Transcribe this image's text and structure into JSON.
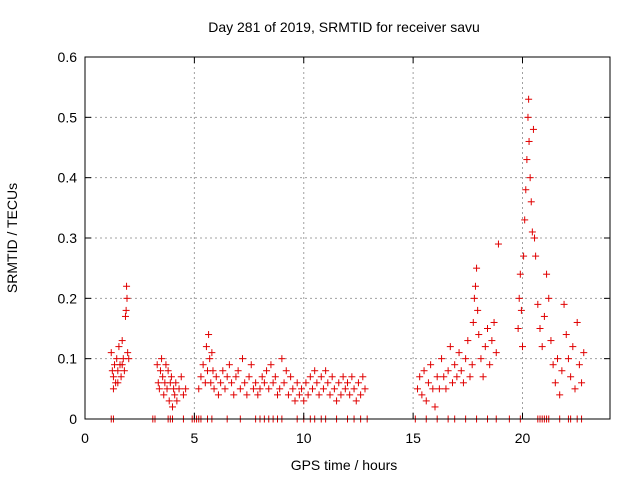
{
  "chart_data": {
    "type": "scatter",
    "title": "Day 281 of 2019, SRMTID for receiver savu",
    "xlabel": "GPS time / hours",
    "ylabel": "SRMTID / TECUs",
    "xlim": [
      0,
      24
    ],
    "ylim": [
      0,
      0.6
    ],
    "xticks": [
      0,
      5,
      10,
      15,
      20
    ],
    "yticks": [
      0,
      0.1,
      0.2,
      0.3,
      0.4,
      0.5,
      0.6
    ],
    "ytick_labels": [
      "0",
      "0.1",
      "0.2",
      "0.3",
      "0.4",
      "0.5",
      "0.6"
    ],
    "xtick_labels": [
      "0",
      "5",
      "10",
      "15",
      "20"
    ],
    "grid": true,
    "marker": "+",
    "color": "#e00000",
    "series": [
      {
        "name": "SRMTID",
        "points": [
          [
            1.2,
            0.11
          ],
          [
            1.25,
            0.08
          ],
          [
            1.3,
            0.07
          ],
          [
            1.35,
            0.09
          ],
          [
            1.4,
            0.06
          ],
          [
            1.45,
            0.1
          ],
          [
            1.5,
            0.08
          ],
          [
            1.55,
            0.12
          ],
          [
            1.6,
            0.09
          ],
          [
            1.65,
            0.07
          ],
          [
            1.7,
            0.13
          ],
          [
            1.75,
            0.1
          ],
          [
            1.8,
            0.08
          ],
          [
            1.85,
            0.17
          ],
          [
            1.88,
            0.18
          ],
          [
            1.9,
            0.22
          ],
          [
            1.92,
            0.2
          ],
          [
            1.95,
            0.11
          ],
          [
            2.0,
            0.1
          ],
          [
            1.3,
            0.05
          ],
          [
            1.5,
            0.06
          ],
          [
            1.7,
            0.09
          ],
          [
            3.3,
            0.09
          ],
          [
            3.35,
            0.06
          ],
          [
            3.4,
            0.05
          ],
          [
            3.45,
            0.08
          ],
          [
            3.5,
            0.1
          ],
          [
            3.55,
            0.07
          ],
          [
            3.6,
            0.04
          ],
          [
            3.65,
            0.06
          ],
          [
            3.7,
            0.09
          ],
          [
            3.75,
            0.05
          ],
          [
            3.8,
            0.08
          ],
          [
            3.85,
            0.03
          ],
          [
            3.9,
            0.06
          ],
          [
            3.95,
            0.07
          ],
          [
            4.0,
            0.02
          ],
          [
            4.05,
            0.05
          ],
          [
            4.1,
            0.04
          ],
          [
            4.15,
            0.06
          ],
          [
            4.2,
            0.03
          ],
          [
            4.3,
            0.05
          ],
          [
            4.4,
            0.07
          ],
          [
            4.5,
            0.04
          ],
          [
            4.6,
            0.05
          ],
          [
            5.2,
            0.05
          ],
          [
            5.3,
            0.07
          ],
          [
            5.4,
            0.09
          ],
          [
            5.5,
            0.06
          ],
          [
            5.55,
            0.12
          ],
          [
            5.6,
            0.08
          ],
          [
            5.65,
            0.14
          ],
          [
            5.7,
            0.1
          ],
          [
            5.75,
            0.06
          ],
          [
            5.8,
            0.11
          ],
          [
            5.85,
            0.08
          ],
          [
            5.9,
            0.05
          ],
          [
            6.0,
            0.07
          ],
          [
            6.1,
            0.04
          ],
          [
            6.2,
            0.06
          ],
          [
            6.3,
            0.08
          ],
          [
            6.4,
            0.05
          ],
          [
            6.5,
            0.07
          ],
          [
            6.6,
            0.09
          ],
          [
            6.7,
            0.06
          ],
          [
            6.8,
            0.04
          ],
          [
            6.9,
            0.07
          ],
          [
            7.0,
            0.08
          ],
          [
            7.1,
            0.05
          ],
          [
            7.2,
            0.1
          ],
          [
            7.3,
            0.06
          ],
          [
            7.4,
            0.04
          ],
          [
            7.5,
            0.07
          ],
          [
            7.6,
            0.09
          ],
          [
            7.7,
            0.05
          ],
          [
            7.8,
            0.06
          ],
          [
            7.9,
            0.04
          ],
          [
            8.0,
            0.05
          ],
          [
            8.1,
            0.07
          ],
          [
            8.2,
            0.06
          ],
          [
            8.3,
            0.08
          ],
          [
            8.4,
            0.05
          ],
          [
            8.5,
            0.09
          ],
          [
            8.6,
            0.06
          ],
          [
            8.7,
            0.07
          ],
          [
            8.8,
            0.04
          ],
          [
            8.9,
            0.05
          ],
          [
            9.0,
            0.1
          ],
          [
            9.1,
            0.06
          ],
          [
            9.2,
            0.08
          ],
          [
            9.3,
            0.04
          ],
          [
            9.4,
            0.07
          ],
          [
            9.5,
            0.05
          ],
          [
            9.6,
            0.03
          ],
          [
            9.7,
            0.06
          ],
          [
            9.8,
            0.04
          ],
          [
            9.9,
            0.05
          ],
          [
            10.0,
            0.03
          ],
          [
            10.1,
            0.06
          ],
          [
            10.2,
            0.04
          ],
          [
            10.3,
            0.07
          ],
          [
            10.4,
            0.05
          ],
          [
            10.5,
            0.08
          ],
          [
            10.6,
            0.06
          ],
          [
            10.7,
            0.04
          ],
          [
            10.8,
            0.07
          ],
          [
            10.9,
            0.05
          ],
          [
            11.0,
            0.08
          ],
          [
            11.1,
            0.06
          ],
          [
            11.2,
            0.04
          ],
          [
            11.3,
            0.07
          ],
          [
            11.4,
            0.05
          ],
          [
            11.5,
            0.03
          ],
          [
            11.6,
            0.06
          ],
          [
            11.7,
            0.04
          ],
          [
            11.8,
            0.07
          ],
          [
            11.9,
            0.05
          ],
          [
            12.0,
            0.06
          ],
          [
            12.1,
            0.04
          ],
          [
            12.2,
            0.07
          ],
          [
            12.3,
            0.05
          ],
          [
            12.4,
            0.03
          ],
          [
            12.5,
            0.06
          ],
          [
            12.6,
            0.04
          ],
          [
            12.7,
            0.07
          ],
          [
            12.8,
            0.05
          ],
          [
            15.2,
            0.05
          ],
          [
            15.3,
            0.07
          ],
          [
            15.4,
            0.04
          ],
          [
            15.5,
            0.08
          ],
          [
            15.6,
            0.03
          ],
          [
            15.7,
            0.06
          ],
          [
            15.8,
            0.09
          ],
          [
            15.9,
            0.05
          ],
          [
            16.0,
            0.02
          ],
          [
            16.1,
            0.07
          ],
          [
            16.2,
            0.05
          ],
          [
            16.3,
            0.1
          ],
          [
            16.4,
            0.07
          ],
          [
            16.5,
            0.05
          ],
          [
            16.6,
            0.08
          ],
          [
            16.7,
            0.12
          ],
          [
            16.8,
            0.06
          ],
          [
            16.9,
            0.09
          ],
          [
            17.0,
            0.07
          ],
          [
            17.1,
            0.11
          ],
          [
            17.2,
            0.08
          ],
          [
            17.3,
            0.06
          ],
          [
            17.4,
            0.1
          ],
          [
            17.5,
            0.13
          ],
          [
            17.6,
            0.07
          ],
          [
            17.7,
            0.09
          ],
          [
            17.75,
            0.16
          ],
          [
            17.8,
            0.2
          ],
          [
            17.85,
            0.22
          ],
          [
            17.9,
            0.25
          ],
          [
            17.95,
            0.18
          ],
          [
            18.0,
            0.14
          ],
          [
            18.1,
            0.1
          ],
          [
            18.2,
            0.07
          ],
          [
            18.3,
            0.12
          ],
          [
            18.4,
            0.15
          ],
          [
            18.5,
            0.09
          ],
          [
            18.6,
            0.13
          ],
          [
            18.7,
            0.16
          ],
          [
            18.8,
            0.11
          ],
          [
            18.9,
            0.29
          ],
          [
            19.8,
            0.15
          ],
          [
            19.85,
            0.2
          ],
          [
            19.9,
            0.24
          ],
          [
            19.95,
            0.18
          ],
          [
            20.0,
            0.12
          ],
          [
            20.05,
            0.27
          ],
          [
            20.1,
            0.33
          ],
          [
            20.15,
            0.38
          ],
          [
            20.2,
            0.43
          ],
          [
            20.25,
            0.5
          ],
          [
            20.28,
            0.53
          ],
          [
            20.3,
            0.46
          ],
          [
            20.35,
            0.4
          ],
          [
            20.4,
            0.36
          ],
          [
            20.45,
            0.31
          ],
          [
            20.5,
            0.48
          ],
          [
            20.55,
            0.3
          ],
          [
            20.6,
            0.27
          ],
          [
            20.7,
            0.19
          ],
          [
            20.8,
            0.15
          ],
          [
            20.9,
            0.12
          ],
          [
            21.0,
            0.17
          ],
          [
            21.1,
            0.24
          ],
          [
            21.2,
            0.2
          ],
          [
            21.3,
            0.13
          ],
          [
            21.4,
            0.09
          ],
          [
            21.5,
            0.06
          ],
          [
            21.6,
            0.1
          ],
          [
            21.7,
            0.04
          ],
          [
            21.8,
            0.08
          ],
          [
            21.9,
            0.19
          ],
          [
            22.0,
            0.14
          ],
          [
            22.1,
            0.1
          ],
          [
            22.2,
            0.07
          ],
          [
            22.3,
            0.12
          ],
          [
            22.4,
            0.05
          ],
          [
            22.5,
            0.16
          ],
          [
            22.6,
            0.09
          ],
          [
            22.7,
            0.06
          ],
          [
            22.8,
            0.11
          ],
          [
            1.2,
            0
          ],
          [
            1.3,
            0
          ],
          [
            3.1,
            0
          ],
          [
            3.2,
            0
          ],
          [
            3.8,
            0
          ],
          [
            3.9,
            0
          ],
          [
            4.0,
            0
          ],
          [
            4.5,
            0
          ],
          [
            4.9,
            0
          ],
          [
            5.0,
            0
          ],
          [
            5.1,
            0
          ],
          [
            5.2,
            0
          ],
          [
            5.3,
            0
          ],
          [
            5.6,
            0
          ],
          [
            5.8,
            0
          ],
          [
            6.5,
            0
          ],
          [
            7.1,
            0
          ],
          [
            7.8,
            0
          ],
          [
            8.0,
            0
          ],
          [
            8.2,
            0
          ],
          [
            8.4,
            0
          ],
          [
            8.6,
            0
          ],
          [
            8.8,
            0
          ],
          [
            9.0,
            0
          ],
          [
            9.7,
            0
          ],
          [
            10.0,
            0
          ],
          [
            10.3,
            0
          ],
          [
            10.5,
            0
          ],
          [
            10.8,
            0
          ],
          [
            11.0,
            0
          ],
          [
            11.5,
            0
          ],
          [
            12.0,
            0
          ],
          [
            12.3,
            0
          ],
          [
            12.6,
            0
          ],
          [
            12.9,
            0
          ],
          [
            15.1,
            0
          ],
          [
            15.6,
            0
          ],
          [
            16.1,
            0
          ],
          [
            16.6,
            0
          ],
          [
            16.9,
            0
          ],
          [
            17.4,
            0
          ],
          [
            17.9,
            0
          ],
          [
            18.4,
            0
          ],
          [
            18.8,
            0
          ],
          [
            19.4,
            0
          ],
          [
            19.9,
            0
          ],
          [
            20.7,
            0
          ],
          [
            20.8,
            0
          ],
          [
            20.9,
            0
          ],
          [
            21.0,
            0
          ],
          [
            21.1,
            0
          ],
          [
            21.2,
            0
          ],
          [
            21.7,
            0
          ],
          [
            22.1,
            0
          ],
          [
            22.2,
            0
          ],
          [
            22.5,
            0
          ],
          [
            22.7,
            0
          ]
        ]
      }
    ]
  }
}
